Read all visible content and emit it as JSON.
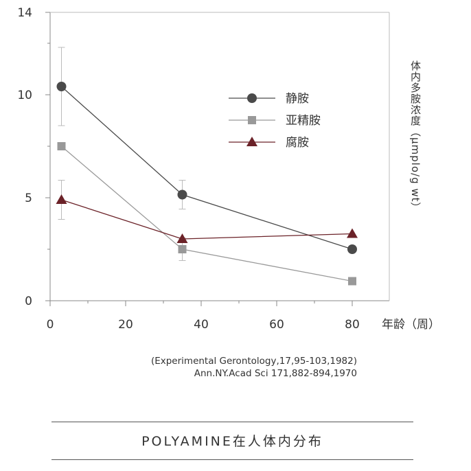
{
  "chart_data": {
    "type": "line",
    "xlabel": "年龄（周）",
    "ylabel": "体内多胺浓度（μmplo/g wt）",
    "xlim": [
      0,
      90
    ],
    "ylim": [
      0,
      14
    ],
    "xticks": [
      0,
      20,
      40,
      60,
      80
    ],
    "yticks": [
      0,
      5,
      10,
      14
    ],
    "legend_position": "top-right",
    "grid": false,
    "series": [
      {
        "name": "静胺",
        "color": "#4a4a4a",
        "marker": "circle",
        "x": [
          3,
          35,
          80
        ],
        "y": [
          10.4,
          5.15,
          2.5
        ],
        "error": [
          1.9,
          0.7,
          null
        ]
      },
      {
        "name": "亚精胺",
        "color": "#999999",
        "marker": "square",
        "x": [
          3,
          35,
          80
        ],
        "y": [
          7.5,
          2.5,
          0.95
        ],
        "error": [
          null,
          0.55,
          null
        ]
      },
      {
        "name": "腐胺",
        "color": "#6b2228",
        "marker": "triangle",
        "x": [
          3,
          35,
          80
        ],
        "y": [
          4.9,
          3.0,
          3.25
        ],
        "error": [
          0.95,
          null,
          null
        ]
      }
    ]
  },
  "citations": [
    "(Experimental Gerontology,17,95-103,1982)",
    "Ann.NY.Acad Sci 171,882-894,1970"
  ],
  "caption": "POLYAMINE在人体内分布"
}
